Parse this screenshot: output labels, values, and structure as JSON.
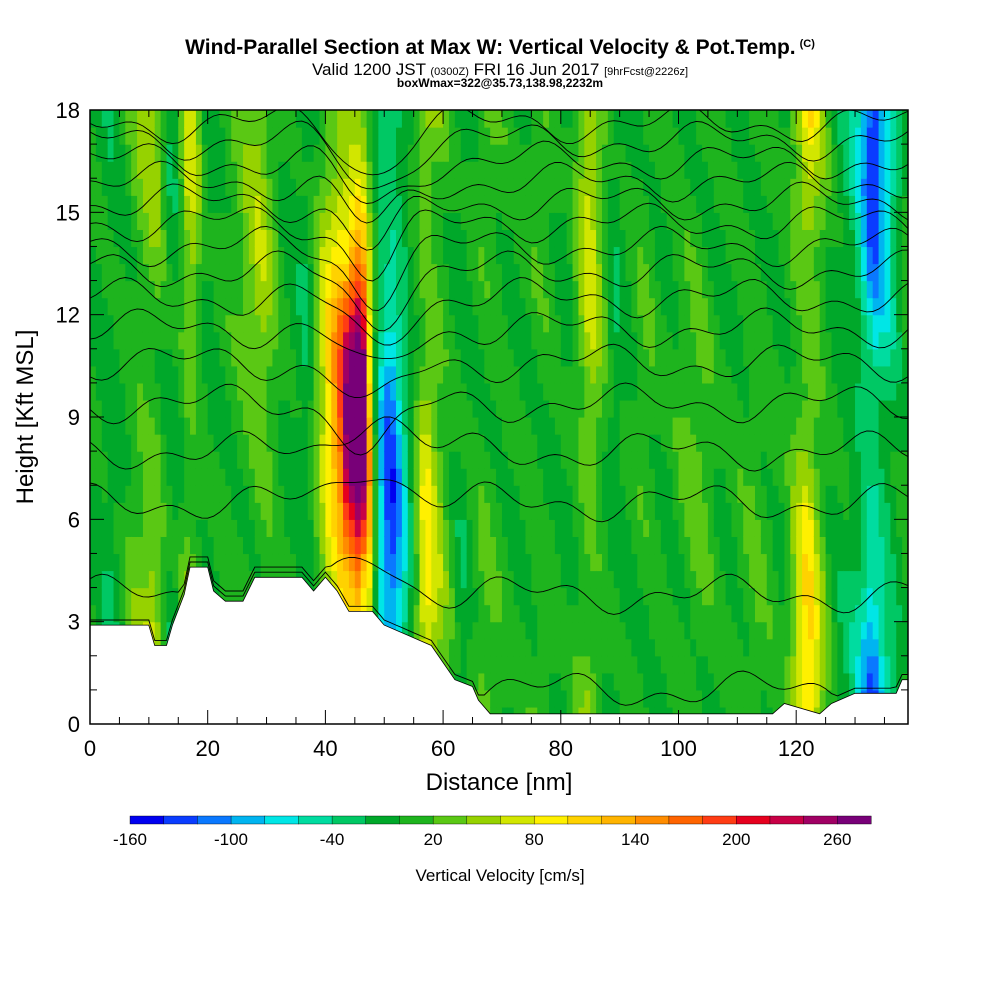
{
  "header": {
    "title": "Wind-Parallel Section at Max W: Vertical Velocity & Pot.Temp.",
    "copyright": "(C)",
    "valid_prefix": "Valid 1200 JST",
    "valid_utc": "(0300Z)",
    "valid_date": "FRI 16 Jun 2017",
    "forecast": "[9hrFcst@2226z]",
    "box_info": "boxWmax=322@35.73,138.98,2232m"
  },
  "chart_data": {
    "type": "heatmap",
    "xlabel": "Distance [nm]",
    "ylabel": "Height [Kft MSL]",
    "xlim": [
      0,
      139
    ],
    "ylim": [
      0,
      18
    ],
    "x_ticks": [
      0,
      20,
      40,
      60,
      80,
      100,
      120
    ],
    "y_ticks": [
      0,
      3,
      6,
      9,
      12,
      15,
      18
    ],
    "colorbar": {
      "label": "Vertical Velocity [cm/s]",
      "tick_labels": [
        -160,
        -100,
        -40,
        20,
        80,
        140,
        200,
        260
      ],
      "levels": [
        -160,
        -140,
        -120,
        -100,
        -80,
        -60,
        -40,
        -20,
        0,
        20,
        40,
        60,
        80,
        100,
        120,
        140,
        160,
        180,
        200,
        220,
        240,
        260,
        280
      ],
      "colors": [
        "#0000f0",
        "#0a3cff",
        "#0a78ff",
        "#00b4f0",
        "#00e6e6",
        "#00dca0",
        "#00c864",
        "#00a82a",
        "#1eb41e",
        "#5ac814",
        "#96d200",
        "#d2e600",
        "#fff000",
        "#ffd200",
        "#ffb400",
        "#ff8c00",
        "#ff6400",
        "#ff3c14",
        "#e6001e",
        "#c80046",
        "#a00064",
        "#780078"
      ]
    },
    "velocity_columns": [
      {
        "x": 0,
        "value": 0
      },
      {
        "x": 4,
        "value": -20
      },
      {
        "x": 8,
        "value": 40
      },
      {
        "x": 11,
        "value": 70
      },
      {
        "x": 14,
        "value": -30
      },
      {
        "x": 17,
        "value": 80
      },
      {
        "x": 20,
        "value": -10
      },
      {
        "x": 25,
        "value": 20
      },
      {
        "x": 29,
        "value": 60
      },
      {
        "x": 33,
        "value": 0
      },
      {
        "x": 37,
        "value": -20
      },
      {
        "x": 42,
        "value": 160
      },
      {
        "x": 46,
        "value": 322
      },
      {
        "x": 49,
        "value": -60
      },
      {
        "x": 51,
        "value": -150
      },
      {
        "x": 54,
        "value": -40
      },
      {
        "x": 57,
        "value": 100
      },
      {
        "x": 60,
        "value": 40
      },
      {
        "x": 63,
        "value": -20
      },
      {
        "x": 67,
        "value": 30
      },
      {
        "x": 72,
        "value": 0
      },
      {
        "x": 77,
        "value": 20
      },
      {
        "x": 81,
        "value": -10
      },
      {
        "x": 85,
        "value": 80
      },
      {
        "x": 89,
        "value": -20
      },
      {
        "x": 94,
        "value": 20
      },
      {
        "x": 98,
        "value": 0
      },
      {
        "x": 103,
        "value": 30
      },
      {
        "x": 108,
        "value": 0
      },
      {
        "x": 113,
        "value": 20
      },
      {
        "x": 118,
        "value": 0
      },
      {
        "x": 122,
        "value": 120
      },
      {
        "x": 126,
        "value": 0
      },
      {
        "x": 130,
        "value": -40
      },
      {
        "x": 133,
        "value": -150
      },
      {
        "x": 136,
        "value": -60
      },
      {
        "x": 139,
        "value": 20
      }
    ],
    "terrain": [
      [
        0,
        2.9
      ],
      [
        10,
        2.9
      ],
      [
        11,
        2.3
      ],
      [
        13,
        2.3
      ],
      [
        14,
        2.9
      ],
      [
        16,
        3.8
      ],
      [
        17,
        4.6
      ],
      [
        20,
        4.6
      ],
      [
        21,
        3.9
      ],
      [
        23,
        3.6
      ],
      [
        26,
        3.6
      ],
      [
        28,
        4.3
      ],
      [
        36,
        4.3
      ],
      [
        38,
        3.9
      ],
      [
        40,
        4.3
      ],
      [
        42,
        3.9
      ],
      [
        44,
        3.3
      ],
      [
        48,
        3.3
      ],
      [
        50,
        2.9
      ],
      [
        54,
        2.6
      ],
      [
        58,
        2.3
      ],
      [
        62,
        1.3
      ],
      [
        65,
        1.1
      ],
      [
        66,
        0.7
      ],
      [
        68,
        0.3
      ],
      [
        80,
        0.3
      ],
      [
        90,
        0.3
      ],
      [
        100,
        0.3
      ],
      [
        112,
        0.3
      ],
      [
        116,
        0.3
      ],
      [
        118,
        0.6
      ],
      [
        124,
        0.3
      ],
      [
        126,
        0.6
      ],
      [
        130,
        0.9
      ],
      [
        137,
        0.9
      ],
      [
        138,
        1.3
      ],
      [
        139,
        1.3
      ]
    ],
    "theta_contours": [
      {
        "base": 1.0
      },
      {
        "base": 3.8
      },
      {
        "base": 6.5
      },
      {
        "base": 8.0
      },
      {
        "base": 9.4
      },
      {
        "base": 10.6
      },
      {
        "base": 11.6
      },
      {
        "base": 12.5
      },
      {
        "base": 13.3
      },
      {
        "base": 14.0
      },
      {
        "base": 14.7
      },
      {
        "base": 15.3
      },
      {
        "base": 15.9
      },
      {
        "base": 16.5
      },
      {
        "base": 17.1
      },
      {
        "base": 17.6
      }
    ]
  }
}
